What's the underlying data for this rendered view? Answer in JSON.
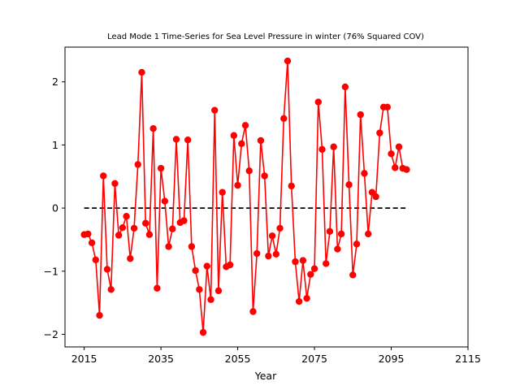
{
  "chart_data": {
    "type": "line",
    "title": "Lead Mode 1 Time-Series for Sea Level Pressure in winter (76% Squared COV)",
    "xlabel": "Year",
    "ylabel": "",
    "xlim": [
      2010,
      2115
    ],
    "ylim": [
      -2.2,
      2.55
    ],
    "x_ticks": [
      2015,
      2035,
      2055,
      2075,
      2095,
      2115
    ],
    "y_ticks": [
      -2,
      -1,
      0,
      1,
      2
    ],
    "grid": false,
    "legend": "none",
    "series": [
      {
        "color": "#ff0000",
        "marker": "circle",
        "x": [
          2015,
          2016,
          2017,
          2018,
          2019,
          2020,
          2021,
          2022,
          2023,
          2024,
          2025,
          2026,
          2027,
          2028,
          2029,
          2030,
          2031,
          2032,
          2033,
          2034,
          2035,
          2036,
          2037,
          2038,
          2039,
          2040,
          2041,
          2042,
          2043,
          2044,
          2045,
          2046,
          2047,
          2048,
          2049,
          2050,
          2051,
          2052,
          2053,
          2054,
          2055,
          2056,
          2057,
          2058,
          2059,
          2060,
          2061,
          2062,
          2063,
          2064,
          2065,
          2066,
          2067,
          2068,
          2069,
          2070,
          2071,
          2072,
          2073,
          2074,
          2075,
          2076,
          2077,
          2078,
          2079,
          2080,
          2081,
          2082,
          2083,
          2084,
          2085,
          2086,
          2087,
          2088,
          2089,
          2090,
          2091,
          2092,
          2093,
          2094,
          2095,
          2096,
          2097,
          2098,
          2099
        ],
        "y": [
          -0.42,
          -0.41,
          -0.55,
          -0.82,
          -1.7,
          0.51,
          -0.97,
          -1.29,
          0.39,
          -0.43,
          -0.31,
          -0.13,
          -0.8,
          -0.32,
          0.69,
          2.15,
          -0.24,
          -0.42,
          1.26,
          -1.27,
          0.63,
          0.11,
          -0.61,
          -0.33,
          1.09,
          -0.23,
          -0.2,
          1.08,
          -0.61,
          -0.99,
          -1.29,
          -1.97,
          -0.92,
          -1.45,
          1.55,
          -1.31,
          0.25,
          -0.93,
          -0.9,
          1.15,
          0.36,
          1.02,
          1.31,
          0.59,
          -1.64,
          -0.72,
          1.07,
          0.51,
          -0.76,
          -0.44,
          -0.73,
          -0.32,
          1.42,
          2.33,
          0.35,
          -0.85,
          -1.48,
          -0.83,
          -1.43,
          -1.05,
          -0.96,
          1.68,
          0.93,
          -0.88,
          -0.37,
          0.97,
          -0.65,
          -0.41,
          1.92,
          0.37,
          -1.06,
          -0.57,
          1.48,
          0.55,
          -0.41,
          0.25,
          0.18,
          1.19,
          1.6,
          1.6,
          0.86,
          0.64,
          0.97,
          0.63,
          0.61
        ]
      }
    ],
    "reference_line": {
      "y": 0,
      "style": "dashed",
      "color": "#000000"
    }
  }
}
